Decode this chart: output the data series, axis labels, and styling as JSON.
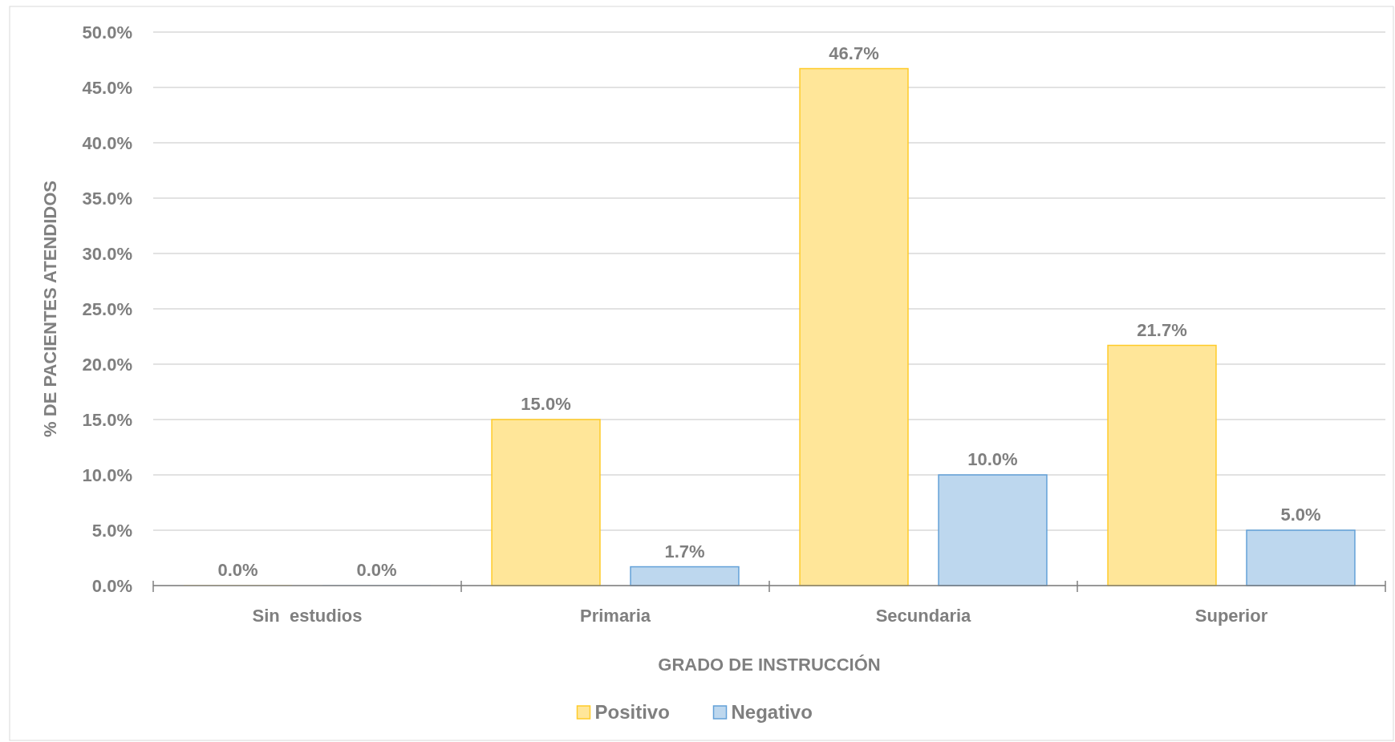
{
  "chart_data": {
    "type": "bar",
    "xlabel": "GRADO DE INSTRUCCIÓN",
    "ylabel": "% DE PACIENTES ATENDIDOS",
    "categories": [
      "Sin  estudios",
      "Primaria",
      "Secundaria",
      "Superior"
    ],
    "series": [
      {
        "name": "Positivo",
        "color": "#ffe699",
        "values": [
          0,
          15.0,
          46.7,
          21.7
        ],
        "value_labels": [
          "0.0%",
          "15.0%",
          "46.7%",
          "21.7%"
        ]
      },
      {
        "name": "Negativo",
        "color": "#bdd7ee",
        "values": [
          0,
          1.7,
          10.0,
          5.0
        ],
        "value_labels": [
          "0.0%",
          "1.7%",
          "10.0%",
          "5.0%"
        ]
      }
    ],
    "ylim": [
      0,
      50
    ],
    "yticks": [
      {
        "value": 0,
        "label": "0.0%"
      },
      {
        "value": 5,
        "label": "5.0%"
      },
      {
        "value": 10,
        "label": "10.0%"
      },
      {
        "value": 15,
        "label": "15.0%"
      },
      {
        "value": 20,
        "label": "20.0%"
      },
      {
        "value": 25,
        "label": "25.0%"
      },
      {
        "value": 30,
        "label": "30.0%"
      },
      {
        "value": 35,
        "label": "35.0%"
      },
      {
        "value": 40,
        "label": "40.0%"
      },
      {
        "value": 45,
        "label": "45.0%"
      },
      {
        "value": 50,
        "label": "50.0%"
      }
    ],
    "grid": "y",
    "legend": "bottom"
  }
}
